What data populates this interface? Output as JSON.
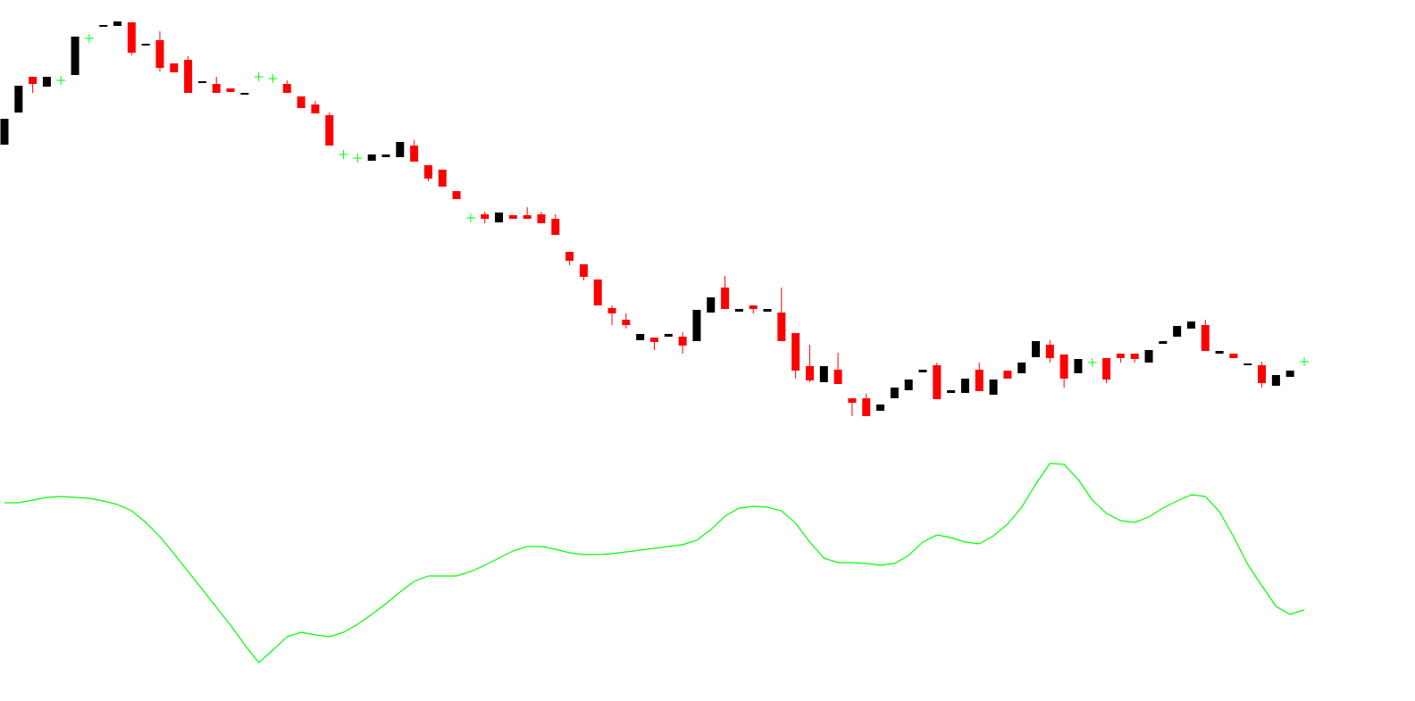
{
  "chart_data": [
    {
      "type": "candlestick",
      "ylim": [
        0,
        480
      ],
      "up_color": "#000000",
      "down_color": "#ff0000",
      "doji_color": "#00ff00",
      "open": [
        318,
        354,
        394,
        383,
        390,
        396,
        437,
        450,
        451,
        455,
        429,
        435,
        409,
        413,
        387,
        386,
        381,
        374,
        394,
        392,
        386,
        372,
        363,
        351,
        307,
        303,
        300,
        304,
        304,
        317,
        295,
        290,
        266,
        236,
        240,
        231,
        239,
        239,
        240,
        235,
        198,
        184,
        167,
        135,
        122,
        99,
        102,
        103,
        103,
        98,
        130,
        158,
        131,
        138,
        131,
        130,
        107,
        70,
        52,
        66,
        34,
        34,
        20,
        34,
        43,
        63,
        71,
        40,
        40,
        66,
        38,
        65,
        62,
        80,
        94,
        83,
        62,
        74,
        79,
        84,
        84,
        74,
        95,
        103,
        112,
        116,
        84,
        84,
        71,
        71,
        48,
        58,
        75
      ],
      "high": [
        347,
        384,
        394,
        394,
        395,
        439,
        442,
        452,
        456,
        455,
        431,
        445,
        409,
        417,
        389,
        394,
        381,
        376,
        399,
        397,
        390,
        372,
        367,
        354,
        312,
        308,
        307,
        307,
        321,
        323,
        295,
        290,
        266,
        241,
        243,
        242,
        239,
        248,
        243,
        240,
        198,
        184,
        167,
        138,
        129,
        106,
        102,
        106,
        108,
        133,
        147,
        171,
        134,
        138,
        134,
        158,
        107,
        94,
        70,
        85,
        34,
        39,
        27,
        46,
        55,
        66,
        74,
        43,
        56,
        74,
        55,
        65,
        74,
        98,
        99,
        83,
        78,
        79,
        79,
        84,
        84,
        88,
        98,
        115,
        120,
        122,
        87,
        84,
        73,
        75,
        60,
        65,
        80
      ],
      "low": [
        318,
        354,
        376,
        383,
        385,
        396,
        432,
        450,
        451,
        418,
        429,
        400,
        399,
        376,
        387,
        376,
        377,
        374,
        389,
        387,
        376,
        359,
        353,
        317,
        302,
        298,
        300,
        304,
        304,
        299,
        277,
        271,
        257,
        231,
        230,
        231,
        235,
        235,
        230,
        217,
        183,
        166,
        138,
        116,
        112,
        99,
        88,
        103,
        84,
        98,
        130,
        134,
        131,
        129,
        131,
        98,
        56,
        52,
        52,
        50,
        14,
        14,
        20,
        34,
        43,
        63,
        33,
        40,
        40,
        42,
        38,
        56,
        62,
        80,
        74,
        46,
        62,
        69,
        51,
        74,
        74,
        74,
        95,
        103,
        112,
        87,
        84,
        79,
        71,
        46,
        48,
        58,
        70
      ],
      "close": [
        347,
        384,
        386,
        394,
        390,
        439,
        437,
        452,
        456,
        421,
        431,
        404,
        399,
        376,
        389,
        376,
        377,
        376,
        394,
        392,
        376,
        359,
        353,
        317,
        307,
        303,
        307,
        307,
        321,
        299,
        280,
        271,
        257,
        236,
        235,
        242,
        235,
        235,
        230,
        217,
        188,
        170,
        138,
        129,
        116,
        106,
        97,
        106,
        93,
        133,
        147,
        134,
        134,
        134,
        134,
        98,
        65,
        54,
        70,
        50,
        29,
        14,
        27,
        46,
        55,
        66,
        33,
        43,
        56,
        42,
        55,
        56,
        74,
        98,
        79,
        56,
        78,
        74,
        55,
        79,
        78,
        88,
        98,
        115,
        120,
        87,
        87,
        79,
        73,
        51,
        60,
        65,
        75
      ]
    },
    {
      "type": "line",
      "ylim": [
        0,
        260
      ],
      "color": "#00ff00",
      "values": [
        197,
        197,
        200,
        203,
        204,
        203,
        202,
        199,
        195,
        188,
        175,
        159,
        140,
        120,
        100,
        80,
        60,
        38,
        18,
        32,
        47,
        52,
        49,
        47,
        52,
        61,
        72,
        84,
        97,
        109,
        115,
        115,
        115,
        120,
        127,
        135,
        143,
        148,
        148,
        145,
        141,
        139,
        139,
        140,
        142,
        144,
        146,
        148,
        150,
        155,
        167,
        182,
        191,
        193,
        192,
        188,
        174,
        153,
        135,
        130,
        130,
        129,
        127,
        129,
        138,
        153,
        161,
        158,
        153,
        151,
        160,
        173,
        192,
        218,
        241,
        240,
        223,
        200,
        185,
        177,
        175,
        181,
        191,
        199,
        206,
        204,
        187,
        159,
        128,
        104,
        81,
        72,
        77
      ]
    }
  ]
}
